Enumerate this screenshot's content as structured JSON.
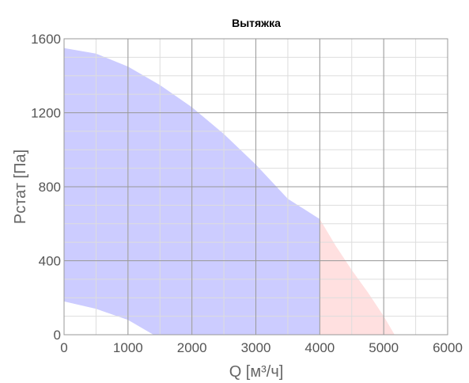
{
  "chart_data": {
    "type": "area",
    "title": "Вытяжка",
    "xlabel": "Q [м³/ч]",
    "ylabel": "Рстат [Па]",
    "xlim": [
      0,
      6000
    ],
    "ylim": [
      0,
      1600
    ],
    "xticks": [
      "0",
      "1000",
      "2000",
      "3000",
      "4000",
      "5000",
      "6000"
    ],
    "yticks": [
      "0",
      "400",
      "800",
      "1200",
      "1600"
    ],
    "grid": true,
    "minor_grid": true,
    "regions": [
      {
        "color": "#ccccff",
        "upper": [
          [
            0,
            1550
          ],
          [
            500,
            1520
          ],
          [
            1000,
            1450
          ],
          [
            1500,
            1350
          ],
          [
            2000,
            1230
          ],
          [
            2500,
            1085
          ],
          [
            3000,
            920
          ],
          [
            3500,
            735
          ],
          [
            4000,
            625
          ]
        ],
        "lower": [
          [
            0,
            180
          ],
          [
            500,
            140
          ],
          [
            1000,
            80
          ],
          [
            1300,
            20
          ],
          [
            1400,
            0
          ],
          [
            4000,
            0
          ]
        ]
      },
      {
        "color": "#ffe0e0",
        "upper": [
          [
            4000,
            625
          ],
          [
            4250,
            480
          ],
          [
            4500,
            350
          ],
          [
            4750,
            230
          ],
          [
            5000,
            100
          ],
          [
            5170,
            0
          ]
        ],
        "lower": [
          [
            4000,
            0
          ],
          [
            5170,
            0
          ]
        ]
      }
    ]
  }
}
